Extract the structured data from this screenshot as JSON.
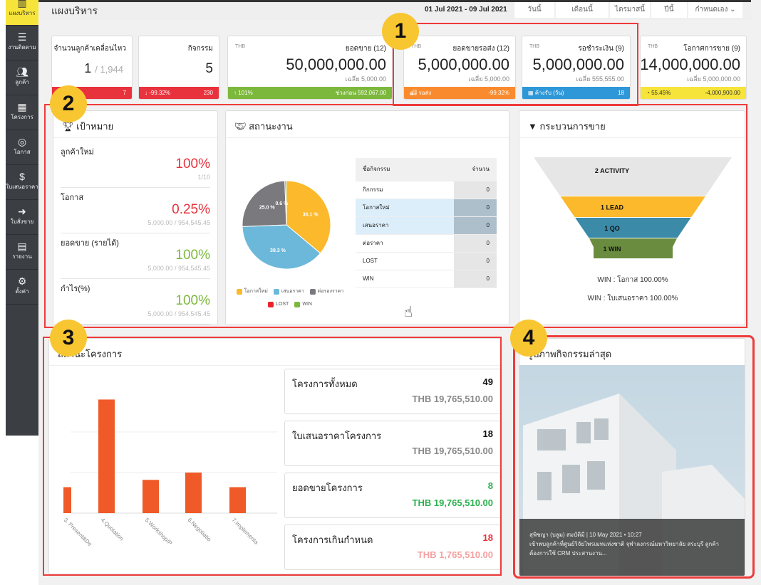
{
  "sidebar": {
    "items": [
      {
        "label": "แผงบริหาร",
        "icon": "bar-chart-icon",
        "active": true
      },
      {
        "label": "งานติดตาม",
        "icon": "server-list-icon"
      },
      {
        "label": "ลูกค้า",
        "icon": "users-icon"
      },
      {
        "label": "โครงการ",
        "icon": "building-icon"
      },
      {
        "label": "โอกาส",
        "icon": "target-icon"
      },
      {
        "label": "ใบเสนอราคา",
        "icon": "quote-document-icon"
      },
      {
        "label": "ใบสั่งขาย",
        "icon": "sales-order-icon"
      },
      {
        "label": "รายงาน",
        "icon": "report-icon"
      },
      {
        "label": "ตั้งค่า",
        "icon": "gears-icon"
      }
    ]
  },
  "header": {
    "title": "แผงบริหาร",
    "date_range": "01 Jul 2021 - 09 Jul 2021",
    "range_buttons": [
      "วันนี้",
      "เดือนนี้",
      "ไตรมาสนี้",
      "ปีนี้"
    ],
    "custom_select": "กำหนดเอง"
  },
  "cards": [
    {
      "label": "จำนวนลูกค้าเคลื่อนไหว",
      "value": "1",
      "total": "/ 1,944",
      "foot_left": "",
      "foot_right": "7",
      "color": "#e8323c"
    },
    {
      "label": "กิจกรรม",
      "value": "5",
      "foot_left": "↓ -99.32%",
      "foot_right": "230",
      "color": "#e8323c"
    },
    {
      "currency": "THB",
      "label": "ยอดขาย (12)",
      "value": "50,000,000.00",
      "avg": "เฉลี่ย 5,000.00",
      "foot_left": "↑ 101%",
      "foot_right": "ช่วงก่อน  592,067.00",
      "color": "#7cb83b"
    },
    {
      "currency": "THB",
      "label": "ยอดขายรอส่ง (12)",
      "value": "5,000,000.00",
      "avg": "เฉลี่ย 5,000.00",
      "foot_left": "รอส่ง",
      "foot_right": "-99.32%",
      "color": "#f98b2e"
    },
    {
      "currency": "THB",
      "label": "รอชำระเงิน (9)",
      "value": "5,000,000.00",
      "avg": "เฉลี่ย 555,555.00",
      "foot_left": "ค้างรับ (วัน)",
      "foot_right": "18",
      "color": "#2d97d8"
    },
    {
      "currency": "THB",
      "label": "โอกาศการขาย (9)",
      "value": "14,000,000.00",
      "avg": "เฉลี่ย 5,000,000.00",
      "foot_left": "55.45%",
      "foot_right": "-4,000,900.00",
      "color": "#f7e43a"
    }
  ],
  "goals": {
    "title": "เป้าหมาย",
    "items": [
      {
        "name": "ลูกค้าใหม่",
        "percent": "100%",
        "sub": "1/10",
        "color": "#e8323c"
      },
      {
        "name": "โอกาส",
        "percent": "0.25%",
        "sub": "5,000.00 /  954,545.45",
        "color": "#e8323c"
      },
      {
        "name": "ยอดขาย (รายได้)",
        "percent": "100%",
        "sub": "5,000.00 /  954,545.45",
        "color": "#7cb83b"
      },
      {
        "name": "กำไร(%)",
        "percent": "100%",
        "sub": "5,000.00 /  954,545.45",
        "color": "#7cb83b"
      }
    ]
  },
  "status": {
    "title": "สถานะงาน",
    "table": {
      "headers": [
        "ชื่อกิจกรรม",
        "จำนวน"
      ],
      "rows": [
        [
          "กิกกรรม",
          "0"
        ],
        [
          "โอกาสใหม่",
          "0"
        ],
        [
          "เสนอราคา",
          "0"
        ],
        [
          "ต่อราคา",
          "0"
        ],
        [
          "LOST",
          "0"
        ],
        [
          "WIN",
          "0"
        ]
      ]
    }
  },
  "funnel": {
    "title": "กระบวนการขาย",
    "stages": [
      {
        "label": "2 ACTIVITY",
        "color": "#e6e6e6"
      },
      {
        "label": "1 LEAD",
        "color": "#fbb92b"
      },
      {
        "label": "1 QO",
        "color": "#3a8aa8"
      },
      {
        "label": "1 WIN",
        "color": "#6a8c3f"
      }
    ],
    "notes": [
      "WIN : โอกาส 100.00%",
      "WIN : ใบเสนอราคา 100.00%"
    ]
  },
  "projects": {
    "title": "สถานะโครงการ",
    "boxes": [
      {
        "name": "โครงการทั้งหมด",
        "count": "49",
        "amount": "THB 19,765,510.00",
        "count_color": "#111",
        "amount_color": "#888"
      },
      {
        "name": "ใบเสนอราคาโครงการ",
        "count": "18",
        "amount": "THB 19,765,510.00",
        "count_color": "#111",
        "amount_color": "#888"
      },
      {
        "name": "ยอดขายโครงการ",
        "count": "8",
        "amount": "THB 19,765,510.00",
        "count_color": "#2bb04e",
        "amount_color": "#2bb04e"
      },
      {
        "name": "โครงการเกินกำหนด",
        "count": "18",
        "amount": "THB 1,765,510.00",
        "count_color": "#e8323c",
        "amount_color": "#f4a0a0"
      }
    ]
  },
  "activity": {
    "title": "รูปภาพกิจกรรมล่าสุด",
    "meta": "สุพิชญา (บลูม) สมบัติมี | 10 May 2021 • 10:27",
    "text": "เข้าพบลูกค้าที่ศูนย์วิจัยไพรเมทแห่งชาติ จุฬาลงกรณ์มหาวิทยาลัย สระบุรี ลูกค้าต้องการใช้ CRM ประสานงาน..."
  },
  "annotations": [
    "1",
    "2",
    "3",
    "4"
  ],
  "chart_data": [
    {
      "type": "pie",
      "slices": [
        {
          "label": "โอกาสใหม่",
          "value": 36.1,
          "color": "#fbb92b"
        },
        {
          "label": "เสนอราคา",
          "value": 38.3,
          "color": "#6cb8da"
        },
        {
          "label": "ต่อรองราคา",
          "value": 25.0,
          "color": "#7a7a7e"
        },
        {
          "label": "LOST",
          "value": 0,
          "color": "#e8232c"
        },
        {
          "label": "WIN",
          "value": 0.6,
          "color": "#7cb83b"
        }
      ],
      "data_labels": [
        "36.1 %",
        "38.3 %",
        "25.0 %",
        "0.6 %"
      ],
      "legend": "bottom"
    },
    {
      "type": "bar",
      "categories": [
        "3. Present&De",
        "4.Quotation",
        "5.Workshop/P",
        "6.Negotiatio",
        "7.Implementa"
      ],
      "values": [
        3.2,
        14,
        4.1,
        5,
        3.2
      ],
      "color": "#f05a28",
      "grid": true
    }
  ]
}
